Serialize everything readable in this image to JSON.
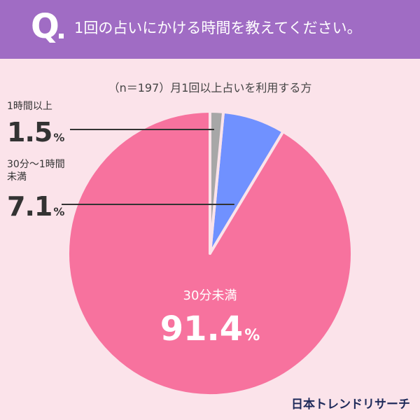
{
  "header": {
    "q_letter": "Q",
    "question": "1回の占いにかける時間を教えてください。"
  },
  "note": "（n＝197）月1回以上占いを利用する方",
  "chart_data": {
    "type": "pie",
    "start_angle_deg": 0,
    "direction": "counterclockwise",
    "slices": [
      {
        "label": "30分未満",
        "label_line2": "",
        "value": 91.4,
        "color": "#f7729e"
      },
      {
        "label": "30分〜1時間",
        "label_line2": "未満",
        "value": 7.1,
        "color": "#7091ff"
      },
      {
        "label": "1時間以上",
        "label_line2": "",
        "value": 1.5,
        "color": "#a7a7a7"
      }
    ],
    "unit": "%"
  },
  "brand": "日本トレンドリサーチ",
  "colors": {
    "header_bg": "#a06cc4",
    "page_bg": "#fbe3ea",
    "slice_border": "#fbe3ea",
    "leader_line": "#333333"
  }
}
